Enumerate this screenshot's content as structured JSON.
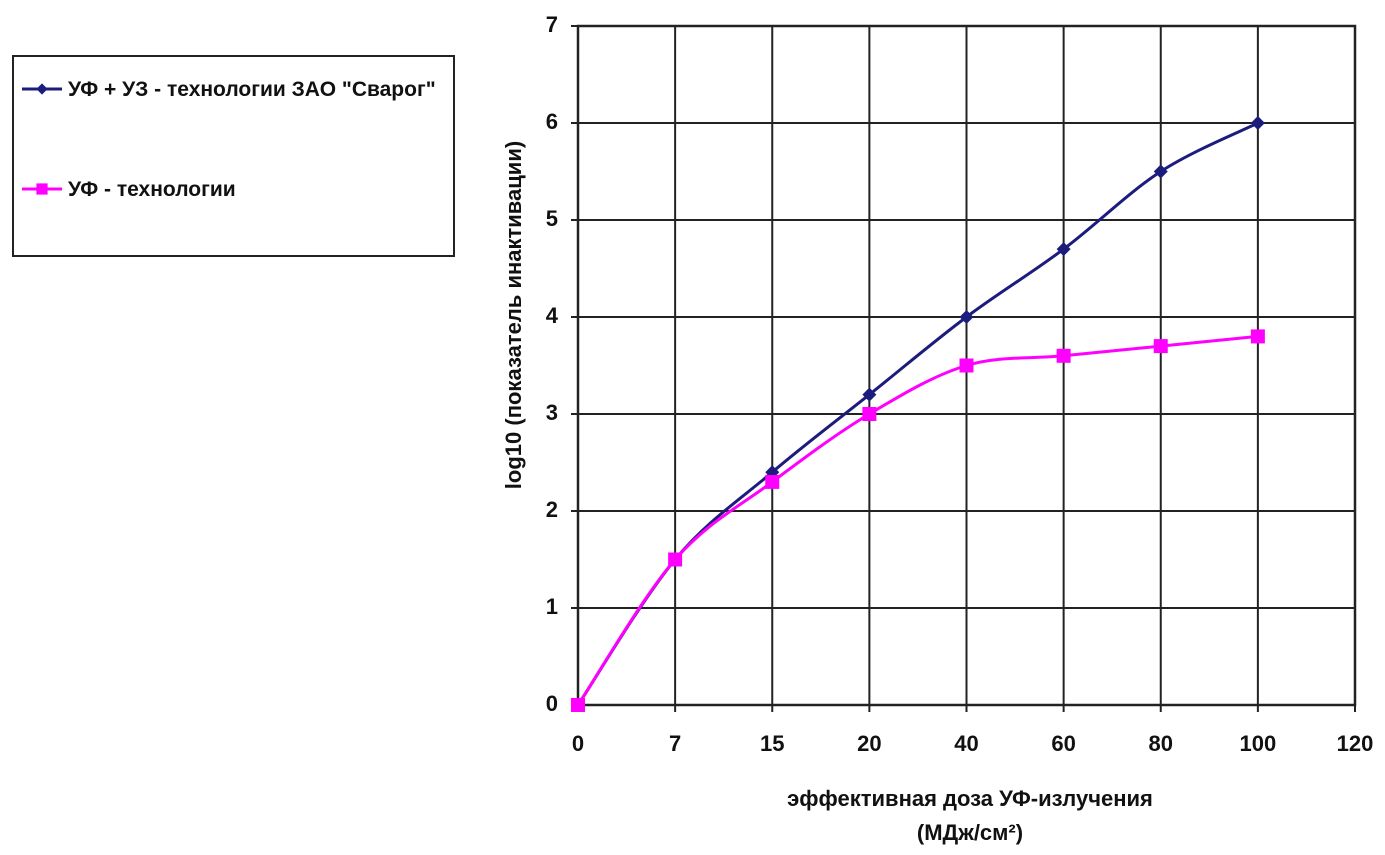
{
  "chart_data": {
    "type": "line",
    "x_label": "эффективная доза УФ-излучения\n(МДж/см²)",
    "y_label": "log10 (показатель инактивации)",
    "categories": [
      "0",
      "7",
      "15",
      "20",
      "40",
      "60",
      "80",
      "100",
      "120"
    ],
    "series": [
      {
        "name": "УФ + УЗ - технологии ЗАО \"Сварог\"",
        "color": "#1c1c7c",
        "marker": "diamond",
        "values": [
          0,
          1.5,
          2.4,
          3.2,
          4.0,
          4.7,
          5.5,
          6.0,
          null
        ]
      },
      {
        "name": "УФ - технологии",
        "color": "#ff00ff",
        "marker": "square",
        "values": [
          0,
          1.5,
          2.3,
          3.0,
          3.5,
          3.6,
          3.7,
          3.8,
          null
        ]
      }
    ],
    "ylim": [
      0,
      7
    ],
    "yticks": [
      0,
      1,
      2,
      3,
      4,
      5,
      6,
      7
    ],
    "grid": true,
    "legend": "left"
  }
}
